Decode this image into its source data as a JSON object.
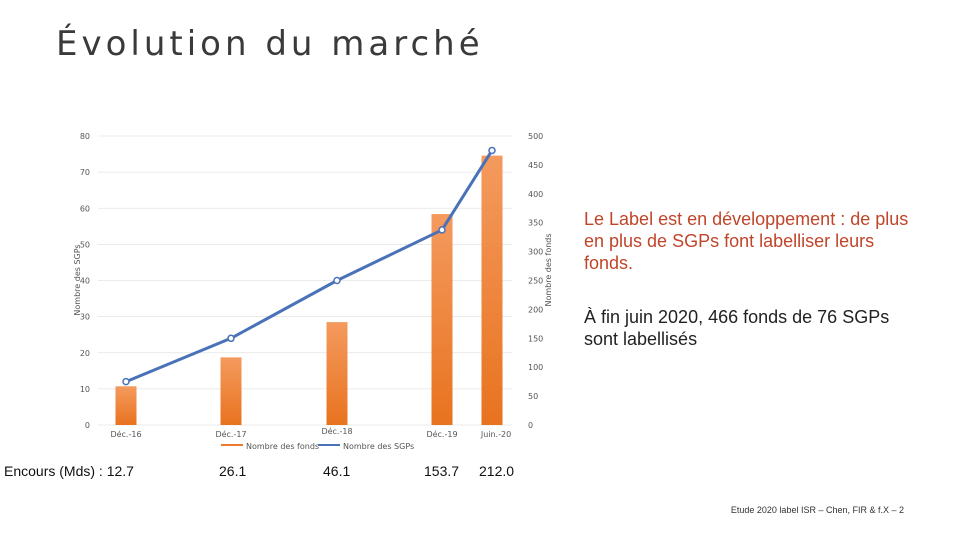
{
  "slide": {
    "title": "Évolution du marché",
    "text1": "Le Label est en développement : de plus en plus de SGPs font labelliser leurs fonds.",
    "text2": "À fin juin 2020, 466 fonds de 76 SGPs sont labellisés",
    "encours_label": "Encours (Mds) : ",
    "encours_values": [
      "12.7",
      "26.1",
      "46.1",
      "153.7",
      "212.0"
    ],
    "footer": "Etude 2020 label ISR – Chen, FIR & f.X – 2"
  },
  "chart_data": {
    "type": "bar",
    "categories": [
      "Déc.-16",
      "Déc.-17",
      "Déc.-18",
      "Déc.-19",
      "Juin.-20"
    ],
    "series": [
      {
        "name": "Nombre des fonds",
        "type": "bar",
        "axis": "right",
        "values": [
          67,
          117,
          178,
          365,
          466
        ],
        "color": "#ee7a2f"
      },
      {
        "name": "Nombre des SGPs",
        "type": "line",
        "axis": "left",
        "values": [
          12,
          24,
          40,
          54,
          76
        ],
        "color": "#4a72b8"
      }
    ],
    "y_left": {
      "label": "Nombre des SGPs",
      "ylim": [
        0,
        80
      ],
      "ticks": [
        0,
        10,
        20,
        30,
        40,
        50,
        60,
        70,
        80
      ]
    },
    "y_right": {
      "label": "Nombre des fonds",
      "ylim": [
        0,
        500
      ],
      "ticks": [
        0,
        50,
        100,
        150,
        200,
        250,
        300,
        350,
        400,
        450,
        500
      ]
    },
    "grid": true,
    "legend": "bottom"
  }
}
